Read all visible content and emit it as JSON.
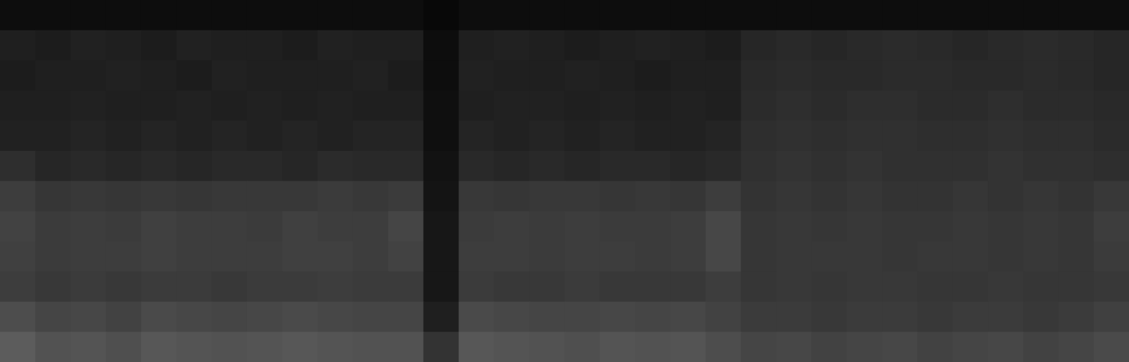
{
  "chart_data": {
    "type": "heatmap",
    "tick_labels": false,
    "xlim": [
      0,
      32
    ],
    "ylim": [
      0,
      12
    ],
    "color": "#ffffff",
    "color_range": [
      0,
      100
    ],
    "cells": [
      [
        5,
        5,
        5,
        5,
        5,
        5,
        5,
        5,
        5,
        5,
        5,
        5,
        3,
        5,
        5,
        5,
        5,
        5,
        5,
        5,
        5,
        5,
        5,
        5,
        5,
        5,
        5,
        5,
        5,
        5,
        5,
        5
      ],
      [
        12,
        11,
        13,
        12,
        11,
        13,
        12,
        12,
        11,
        13,
        12,
        12,
        5,
        12,
        13,
        12,
        11,
        12,
        13,
        12,
        11,
        15,
        16,
        15,
        16,
        17,
        16,
        15,
        16,
        17,
        16,
        15
      ],
      [
        11,
        12,
        12,
        13,
        12,
        11,
        13,
        12,
        12,
        12,
        13,
        11,
        5,
        13,
        12,
        12,
        13,
        12,
        11,
        12,
        12,
        16,
        17,
        16,
        16,
        17,
        17,
        16,
        16,
        17,
        16,
        15
      ],
      [
        12,
        12,
        13,
        12,
        12,
        13,
        12,
        13,
        12,
        13,
        12,
        12,
        6,
        12,
        13,
        13,
        12,
        13,
        12,
        13,
        12,
        17,
        18,
        17,
        18,
        18,
        17,
        17,
        18,
        17,
        17,
        16
      ],
      [
        13,
        13,
        14,
        13,
        14,
        13,
        14,
        13,
        14,
        13,
        14,
        14,
        6,
        14,
        13,
        14,
        13,
        14,
        13,
        13,
        14,
        18,
        19,
        18,
        19,
        19,
        18,
        18,
        19,
        18,
        18,
        17
      ],
      [
        18,
        15,
        16,
        15,
        16,
        15,
        16,
        16,
        15,
        17,
        16,
        16,
        7,
        16,
        15,
        16,
        15,
        16,
        16,
        15,
        16,
        19,
        20,
        19,
        20,
        19,
        19,
        19,
        20,
        19,
        19,
        18
      ],
      [
        24,
        21,
        22,
        21,
        22,
        21,
        22,
        22,
        22,
        23,
        22,
        23,
        8,
        22,
        21,
        22,
        22,
        21,
        22,
        21,
        24,
        20,
        21,
        20,
        21,
        20,
        20,
        21,
        20,
        21,
        20,
        22
      ],
      [
        26,
        23,
        24,
        23,
        25,
        24,
        24,
        23,
        25,
        24,
        24,
        27,
        9,
        23,
        24,
        23,
        24,
        23,
        23,
        24,
        28,
        21,
        22,
        21,
        22,
        21,
        21,
        22,
        21,
        22,
        21,
        24
      ],
      [
        25,
        23,
        24,
        24,
        25,
        24,
        24,
        24,
        25,
        25,
        24,
        26,
        9,
        24,
        24,
        23,
        24,
        24,
        23,
        24,
        28,
        21,
        22,
        22,
        22,
        21,
        22,
        22,
        21,
        22,
        21,
        23
      ],
      [
        24,
        22,
        23,
        22,
        23,
        23,
        22,
        23,
        23,
        24,
        23,
        23,
        9,
        23,
        22,
        22,
        23,
        22,
        22,
        22,
        24,
        21,
        22,
        21,
        22,
        22,
        21,
        21,
        22,
        21,
        21,
        22
      ],
      [
        30,
        27,
        28,
        26,
        29,
        28,
        27,
        28,
        29,
        28,
        27,
        27,
        12,
        29,
        28,
        27,
        27,
        28,
        27,
        28,
        26,
        23,
        23,
        22,
        23,
        23,
        22,
        23,
        23,
        22,
        23,
        25
      ],
      [
        36,
        32,
        33,
        31,
        34,
        33,
        32,
        33,
        34,
        33,
        32,
        32,
        20,
        34,
        33,
        32,
        31,
        33,
        32,
        33,
        30,
        27,
        28,
        26,
        27,
        28,
        26,
        27,
        28,
        26,
        27,
        29
      ]
    ]
  }
}
